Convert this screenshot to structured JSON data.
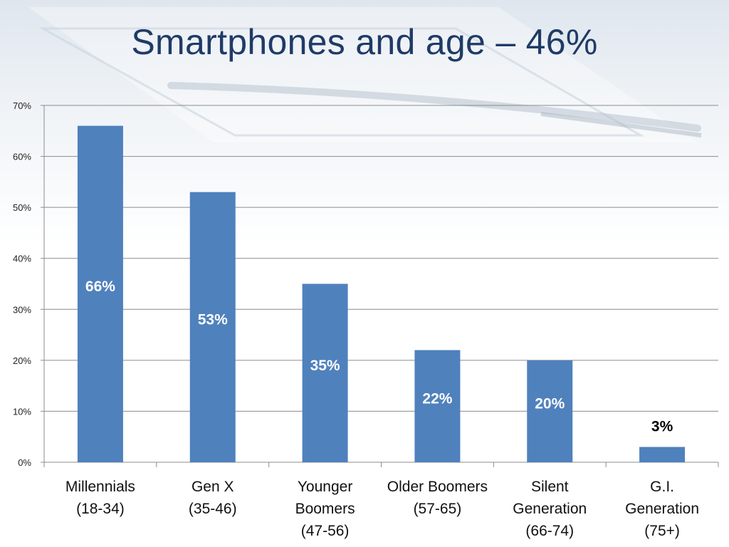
{
  "slide": {
    "title": "Smartphones and age – 46%"
  },
  "colors": {
    "bar": "#4f81bd",
    "grid": "#8c8c8c",
    "title": "#1f3b66",
    "label_inside": "#ffffff",
    "label_outside": "#000000"
  },
  "chart_data": {
    "type": "bar",
    "title": "Smartphones and age – 46%",
    "xlabel": "",
    "ylabel": "",
    "ylim": [
      0,
      70
    ],
    "yticks": [
      "0%",
      "10%",
      "20%",
      "30%",
      "40%",
      "50%",
      "60%",
      "70%"
    ],
    "grid": true,
    "legend": "none",
    "categories": [
      [
        "Millennials",
        "(18-34)"
      ],
      [
        "Gen X",
        "(35-46)"
      ],
      [
        "Younger",
        "Boomers",
        "(47-56)"
      ],
      [
        "Older Boomers",
        "(57-65)"
      ],
      [
        "Silent",
        "Generation",
        "(66-74)"
      ],
      [
        "G.I.",
        "Generation",
        "(75+)"
      ]
    ],
    "values": [
      66,
      53,
      35,
      22,
      20,
      3
    ],
    "data_labels": [
      "66%",
      "53%",
      "35%",
      "22%",
      "20%",
      "3%"
    ]
  }
}
